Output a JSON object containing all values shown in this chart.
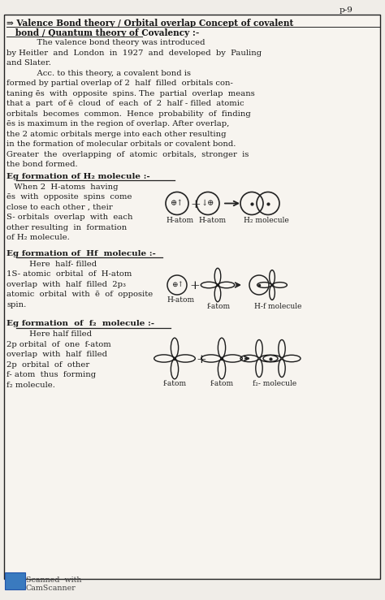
{
  "bg_color": "#f0ede8",
  "page_bg": "#f7f4ef",
  "line_color": "#222222",
  "page_num": "p-9",
  "figsize": [
    4.74,
    7.39
  ],
  "dpi": 100,
  "border": [
    5,
    18,
    463,
    695
  ],
  "title_lines": [
    "⇒ Valence Bond theory / Orbital overlap Concept of covalent",
    "   bond / Quantum theory of Covalency :-"
  ],
  "body_lines": [
    "            The valence bond theory was introduced",
    "by Heitler  and  London  in  1927  and  developed  by  Pauling",
    "and Slater.",
    "            Acc. to this theory, a covalent bond is",
    "formed by partial overlap of 2  half  filled  orbitals con-",
    "taning ēs  with  opposite  spins. The  partial  overlap  means",
    "that a  part  of ē  cloud  of  each  of  2  half - filled  atomic",
    "orbitals  becomes  common.  Hence  probability  of  finding",
    "ēs is maximum in the region of overlap. After overlap,",
    "the 2 atomic orbitals merge into each other resulting",
    "in the formation of molecular orbitals or covalent bond.",
    "Greater  the  overlapping  of  atomic  orbitals,  stronger  is",
    "the bond formed."
  ],
  "h2_heading": "Eg formation of H₂ molecule :-",
  "h2_body": [
    "   When 2  H-atoms  having",
    "ēs  with  opposite  spins  come",
    "close to each other , their",
    "S- orbitals  overlap  with  each",
    "other resulting  in  formation",
    "of H₂ molecule."
  ],
  "h2_labels": [
    "H-atom",
    "H-atom",
    "H₂ molecule"
  ],
  "hf_heading": "Eg formation of  Hf  molecule :-",
  "hf_sub": "         Here  half- filled",
  "hf_body": [
    "1S- atomic  orbital  of  H-atom",
    "overlap  with  half  filled  2p₃",
    "atomic  orbital  with  ē  of  opposite",
    "spin."
  ],
  "hf_labels": [
    "H-atom",
    "f-atom",
    "H-f molecule"
  ],
  "f2_heading": "Eg formation  of  f₂  molecule :-",
  "f2_sub": "         Here half filled",
  "f2_body": [
    "2p orbital  of  one  f-atom",
    "overlap  with  half  filled",
    "2p  orbital  of  other",
    "f- atom  thus  forming",
    "f₂ molecule."
  ],
  "f2_labels": [
    "f-atom",
    "f-atom",
    "f₂- molecule"
  ],
  "footer_text": "Scanned  with\nCamScanner"
}
